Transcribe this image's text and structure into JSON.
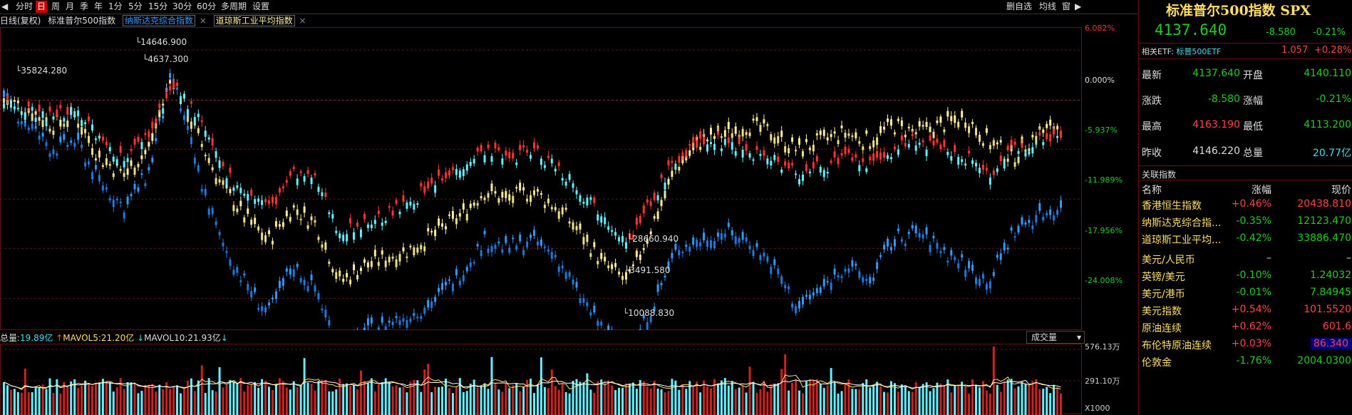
{
  "toolbar": {
    "items": [
      "分时",
      "日",
      "周",
      "月",
      "季",
      "年",
      "1分",
      "5分",
      "15分",
      "30分",
      "60分",
      "多周期",
      "设置"
    ],
    "active": 1,
    "right_items": [
      "删自选",
      "均线",
      "窗"
    ]
  },
  "legend": {
    "period": "日线(复权)",
    "main": "标准普尔500指数",
    "overlay1": "纳斯达克综合指数",
    "overlay2": "道琼斯工业平均指数"
  },
  "y_axis_labels": [
    "6.082%",
    "0.000%",
    "-5.937%",
    "-11.989%",
    "-17.956%",
    "-24.008%"
  ],
  "price_annotations": {
    "high": "14646.900",
    "high2": "4637.300",
    "left": "35824.280",
    "low1": "28660.940",
    "low2": "3491.580",
    "low3": "10088.830"
  },
  "volume": {
    "label_total": "总量:",
    "total": "19.89亿",
    "label_ma5": "MAVOL5:",
    "ma5": "21.20亿",
    "label_ma10": "MAVOL10:",
    "ma10": "21.93亿",
    "selector": "成交量",
    "axis": [
      "576.13万",
      "291.10万",
      "X1000"
    ]
  },
  "panel": {
    "title": "标准普尔500指数 SPX",
    "price": "4137.640",
    "change": "-8.580",
    "change_pct": "-0.21%",
    "etf_label": "相关ETF:",
    "etf_name": "标普500ETF",
    "etf_price": "1.057",
    "etf_pct": "+0.28%",
    "rows": [
      {
        "k": "最新",
        "v": "4137.640",
        "k2": "开盘",
        "v2": "4140.110"
      },
      {
        "k": "涨跌",
        "v": "-8.580",
        "k2": "涨幅",
        "v2": "-0.21%"
      },
      {
        "k": "最高",
        "v": "4163.190",
        "k2": "最低",
        "v2": "4113.200"
      },
      {
        "k": "昨收",
        "v": "4146.220",
        "k2": "总量",
        "v2": "20.77亿"
      }
    ],
    "related_header": "关联指数",
    "col_name": "名称",
    "col_chg": "涨幅",
    "col_price": "现价",
    "related": [
      {
        "name": "香港恒生指数",
        "chg": "+0.46%",
        "price": "20438.810"
      },
      {
        "name": "纳斯达克综合指...",
        "chg": "-0.35%",
        "price": "12123.470"
      },
      {
        "name": "道琼斯工业平均...",
        "chg": "-0.42%",
        "price": "33886.470"
      },
      {
        "name": "美元/人民币",
        "chg": "–",
        "price": "–"
      },
      {
        "name": "英镑/美元",
        "chg": "-0.10%",
        "price": "1.24032"
      },
      {
        "name": "美元/港币",
        "chg": "-0.01%",
        "price": "7.84945"
      },
      {
        "name": "美元指数",
        "chg": "+0.54%",
        "price": "101.5520"
      },
      {
        "name": "原油连续",
        "chg": "+0.62%",
        "price": "601.6"
      },
      {
        "name": "布伦特原油连续",
        "chg": "+0.03%",
        "price": "86.340"
      },
      {
        "name": "伦敦金",
        "chg": "-1.76%",
        "price": "2004.0300"
      }
    ]
  },
  "chart_data": {
    "type": "line",
    "y_axis_unit": "percent change",
    "ylim": [
      -27,
      8
    ],
    "grid": true,
    "series": [
      {
        "name": "标准普尔500指数",
        "color": "#ffee99",
        "values": [
          0,
          -1,
          -3,
          -2,
          -7,
          -9,
          -6,
          3,
          -4,
          -10,
          -14,
          -17,
          -13,
          -15,
          -22,
          -20,
          -19,
          -18,
          -16,
          -14,
          -11,
          -12,
          -11,
          -13,
          -16,
          -20,
          -22,
          -15,
          -8,
          -5,
          -4,
          -3,
          -4,
          -6,
          -5,
          -4,
          -5,
          -3,
          -4,
          -3,
          -2,
          -5,
          -7,
          -4,
          -3
        ]
      },
      {
        "name": "纳斯达克综合指数",
        "color": "#3399ff",
        "values": [
          0,
          -3,
          -6,
          -5,
          -10,
          -13,
          -9,
          3,
          -8,
          -17,
          -22,
          -26,
          -20,
          -23,
          -31,
          -28,
          -27,
          -26,
          -24,
          -21,
          -17,
          -18,
          -17,
          -19,
          -24,
          -28,
          -31,
          -25,
          -18,
          -17,
          -16,
          -17,
          -20,
          -25,
          -23,
          -20,
          -22,
          -17,
          -16,
          -18,
          -20,
          -22,
          -16,
          -14,
          -13
        ]
      },
      {
        "name": "道琼斯工业平均指数",
        "color": "#cc2222",
        "values": [
          0,
          -1,
          -2,
          -1,
          -5,
          -7,
          -4,
          2,
          -2,
          -8,
          -11,
          -13,
          -9,
          -10,
          -16,
          -15,
          -14,
          -12,
          -10,
          -8,
          -6,
          -7,
          -6,
          -8,
          -11,
          -14,
          -17,
          -12,
          -7,
          -5,
          -5,
          -6,
          -7,
          -9,
          -8,
          -7,
          -8,
          -6,
          -5,
          -6,
          -7,
          -9,
          -6,
          -5,
          -4
        ]
      }
    ]
  }
}
